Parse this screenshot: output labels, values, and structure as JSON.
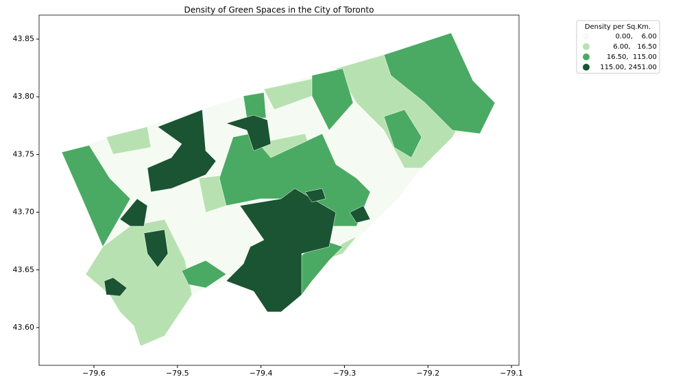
{
  "chart_data": {
    "type": "choropleth",
    "title": "Density of Green Spaces in the City of Toronto",
    "xlim": [
      -79.6657,
      -79.091
    ],
    "ylim": [
      43.5673,
      43.8708
    ],
    "xticks": [
      {
        "value": -79.6,
        "label": "−79.6"
      },
      {
        "value": -79.5,
        "label": "−79.5"
      },
      {
        "value": -79.4,
        "label": "−79.4"
      },
      {
        "value": -79.3,
        "label": "−79.3"
      },
      {
        "value": -79.2,
        "label": "−79.2"
      },
      {
        "value": -79.1,
        "label": "−79.1"
      }
    ],
    "yticks": [
      {
        "value": 43.6,
        "label": "43.60"
      },
      43.65,
      {
        "value": 43.7,
        "label": "43.70"
      },
      43.75,
      {
        "value": 43.8,
        "label": "43.80"
      },
      43.85
    ],
    "legend": {
      "title": "Density per Sq.Km.",
      "corner": "outside upper right",
      "entries": [
        {
          "label": "0.00,    6.00",
          "color": "#f5fbf2"
        },
        {
          "label": "6.00,   16.50",
          "color": "#b8e1b1"
        },
        {
          "label": "16.50,  115.00",
          "color": "#4aaa63"
        },
        {
          "label": "115.00, 2451.00",
          "color": "#1a5432"
        }
      ]
    }
  }
}
